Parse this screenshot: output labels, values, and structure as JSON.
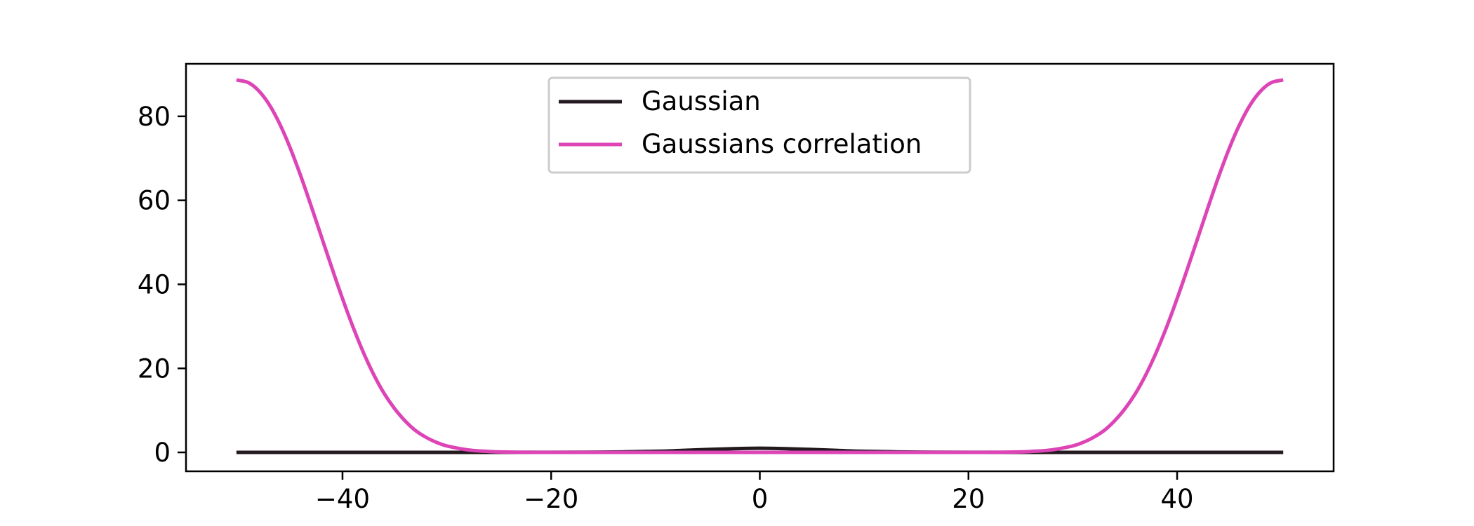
{
  "chart_data": {
    "type": "line",
    "title": "",
    "xlabel": "",
    "ylabel": "",
    "xlim": [
      -55,
      55
    ],
    "ylim": [
      -4.5,
      92.5
    ],
    "xticks": [
      -40,
      -20,
      0,
      20,
      40
    ],
    "yticks": [
      0,
      20,
      40,
      60,
      80
    ],
    "xtick_labels": [
      "−40",
      "−20",
      "0",
      "20",
      "40"
    ],
    "ytick_labels": [
      "0",
      "20",
      "40",
      "60",
      "80"
    ],
    "grid": false,
    "legend_position": "upper-center",
    "series": [
      {
        "name": "Gaussian",
        "color": "#231a20",
        "x": [
          -50,
          -40,
          -30,
          -20,
          -15,
          -10,
          -7.5,
          -5,
          -2.5,
          0,
          2.5,
          5,
          7.5,
          10,
          15,
          20,
          30,
          40,
          50
        ],
        "y": [
          0,
          0,
          0,
          0.02,
          0.07,
          0.25,
          0.46,
          0.7,
          0.9,
          1.0,
          0.9,
          0.7,
          0.46,
          0.25,
          0.07,
          0.02,
          0,
          0,
          0
        ]
      },
      {
        "name": "Gaussians correlation",
        "color": "#dd44b6",
        "x": [
          -50,
          -49,
          -48,
          -47,
          -46,
          -45,
          -44,
          -43,
          -42,
          -41,
          -40,
          -39,
          -38,
          -37,
          -36,
          -35,
          -34,
          -33,
          -32,
          -31,
          -30,
          -28,
          -26,
          -24,
          -22,
          -20,
          -15,
          -10,
          -5,
          0,
          5,
          10,
          15,
          20,
          22,
          24,
          26,
          28,
          30,
          31,
          32,
          33,
          34,
          35,
          36,
          37,
          38,
          39,
          40,
          41,
          42,
          43,
          44,
          45,
          46,
          47,
          48,
          49,
          50
        ],
        "y": [
          88.6,
          88.0,
          86.0,
          82.7,
          78.1,
          72.4,
          65.8,
          58.6,
          51.2,
          43.8,
          36.6,
          29.9,
          23.8,
          18.5,
          14.0,
          10.4,
          7.5,
          5.2,
          3.6,
          2.4,
          1.55,
          0.6,
          0.22,
          0.07,
          0.02,
          0,
          0,
          0,
          0,
          0,
          0,
          0,
          0,
          0,
          0.02,
          0.07,
          0.22,
          0.6,
          1.55,
          2.4,
          3.6,
          5.2,
          7.5,
          10.4,
          14.0,
          18.5,
          23.8,
          29.9,
          36.6,
          43.8,
          51.2,
          58.6,
          65.8,
          72.4,
          78.1,
          82.7,
          86.0,
          88.0,
          88.6
        ]
      }
    ]
  }
}
